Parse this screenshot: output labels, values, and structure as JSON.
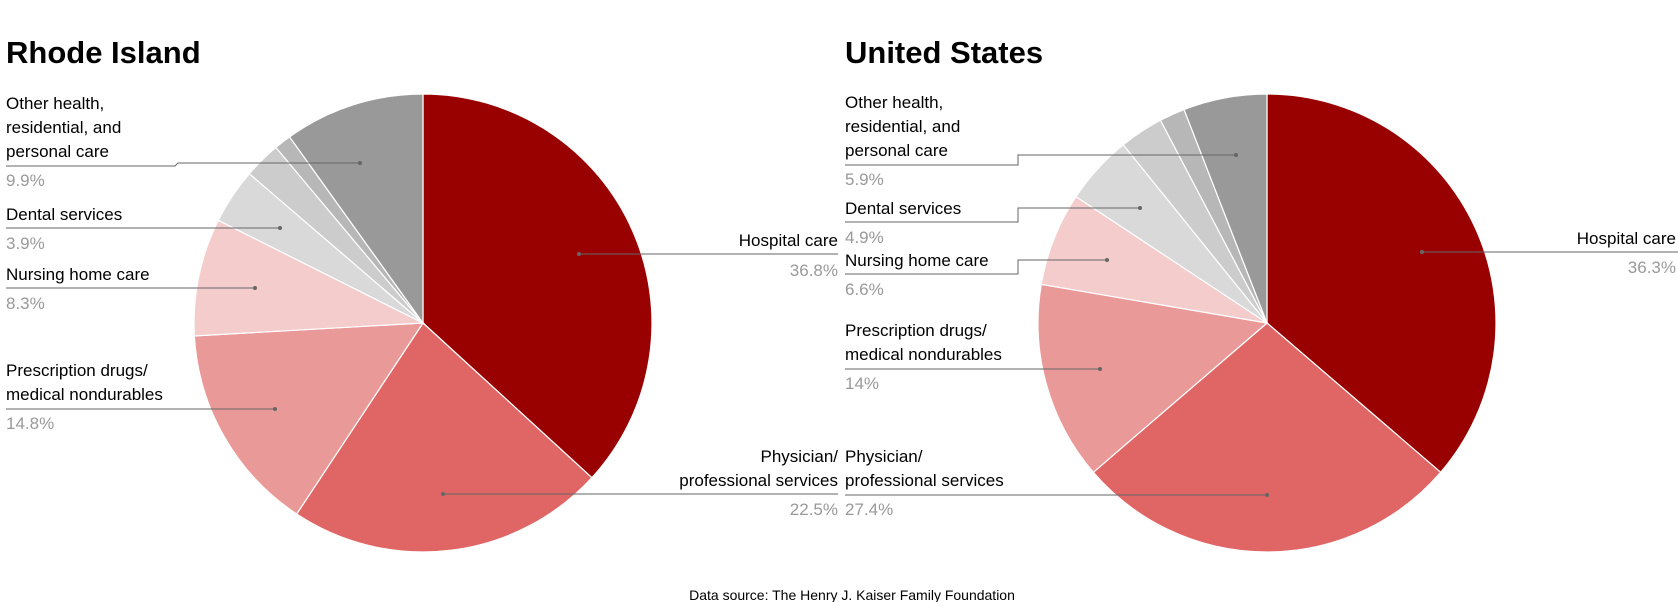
{
  "chart_data": [
    {
      "type": "pie",
      "title": "Rhode Island",
      "slices": [
        {
          "label": "Hospital care",
          "value": 36.8,
          "display": "36.8%",
          "color": "#990000"
        },
        {
          "label": "Physician/ professional services",
          "value": 22.5,
          "display": "22.5%",
          "color": "#e06666"
        },
        {
          "label": "Prescription drugs/ medical nondurables",
          "value": 14.8,
          "display": "14.8%",
          "color": "#ea9999"
        },
        {
          "label": "Nursing home care",
          "value": 8.3,
          "display": "8.3%",
          "color": "#f4cccc"
        },
        {
          "label": "Dental services",
          "value": 3.9,
          "display": "3.9%",
          "color": "#d9d9d9"
        },
        {
          "label": "",
          "value": 2.6,
          "display": "",
          "color": "#cccccc"
        },
        {
          "label": "",
          "value": 1.2,
          "display": "",
          "color": "#b7b7b7"
        },
        {
          "label": "Other health, residential, and personal care",
          "value": 9.9,
          "display": "9.9%",
          "color": "#999999"
        }
      ]
    },
    {
      "type": "pie",
      "title": "United States",
      "slices": [
        {
          "label": "Hospital care",
          "value": 36.3,
          "display": "36.3%",
          "color": "#990000"
        },
        {
          "label": "Physician/ professional services",
          "value": 27.4,
          "display": "27.4%",
          "color": "#e06666"
        },
        {
          "label": "Prescription drugs/ medical nondurables",
          "value": 14,
          "display": "14%",
          "color": "#ea9999"
        },
        {
          "label": "Nursing home care",
          "value": 6.6,
          "display": "6.6%",
          "color": "#f4cccc"
        },
        {
          "label": "Dental services",
          "value": 4.9,
          "display": "4.9%",
          "color": "#d9d9d9"
        },
        {
          "label": "",
          "value": 3.1,
          "display": "",
          "color": "#cccccc"
        },
        {
          "label": "",
          "value": 1.8,
          "display": "",
          "color": "#b7b7b7"
        },
        {
          "label": "Other health, residential, and personal care",
          "value": 5.9,
          "display": "5.9%",
          "color": "#999999"
        }
      ]
    }
  ],
  "labels": {
    "ri_hospital": "Hospital care",
    "ri_physician_1": "Physician/",
    "ri_physician_2": "professional services",
    "ri_rx_1": "Prescription drugs/",
    "ri_rx_2": "medical nondurables",
    "ri_nursing": "Nursing home care",
    "ri_dental": "Dental services",
    "ri_other_1": "Other health,",
    "ri_other_2": "residential, and",
    "ri_other_3": "personal care",
    "us_hospital": "Hospital care",
    "us_physician_1": "Physician/",
    "us_physician_2": "professional services",
    "us_rx_1": "Prescription drugs/",
    "us_rx_2": "medical nondurables",
    "us_nursing": "Nursing home care",
    "us_dental": "Dental services",
    "us_other_1": "Other health,",
    "us_other_2": "residential, and",
    "us_other_3": "personal care"
  },
  "source": "Data source: The Henry J. Kaiser Family Foundation"
}
